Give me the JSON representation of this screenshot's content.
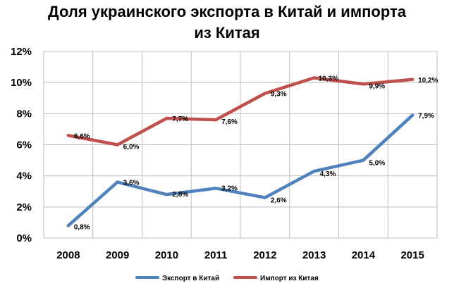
{
  "chart_data": {
    "type": "line",
    "title_line1": "Доля украинского экспорта в Китай и импорта",
    "title_line2": "из Китая",
    "categories": [
      "2008",
      "2009",
      "2010",
      "2011",
      "2012",
      "2013",
      "2014",
      "2015"
    ],
    "ylim": [
      0,
      12
    ],
    "yticks": [
      0,
      2,
      4,
      6,
      8,
      10,
      12
    ],
    "ytick_labels": [
      "0%",
      "2%",
      "4%",
      "6%",
      "8%",
      "10%",
      "12%"
    ],
    "grid": true,
    "legend_position": "bottom",
    "series": [
      {
        "name": "Экспорт в Китай",
        "color": "#4F81BD",
        "values": [
          0.8,
          3.6,
          2.8,
          3.2,
          2.6,
          4.3,
          5.0,
          7.9
        ],
        "labels": [
          "0,8%",
          "3,6%",
          "2,8%",
          "3,2%",
          "2,6%",
          "4,3%",
          "5,0%",
          "7,9%"
        ]
      },
      {
        "name": "Импорт из Китая",
        "color": "#C0504D",
        "values": [
          6.6,
          6.0,
          7.7,
          7.6,
          9.3,
          10.3,
          9.9,
          10.2
        ],
        "labels": [
          "6,6%",
          "6,0%",
          "7,7%",
          "7,6%",
          "9,3%",
          "10,3%",
          "9,9%",
          "10,2%"
        ]
      }
    ]
  }
}
